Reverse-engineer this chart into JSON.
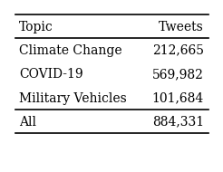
{
  "col_headers": [
    "Topic",
    "Tweets"
  ],
  "rows": [
    [
      "Climate Change",
      "212,665"
    ],
    [
      "COVID-19",
      "569,982"
    ],
    [
      "Military Vehicles",
      "101,684"
    ]
  ],
  "total_row": [
    "All",
    "884,331"
  ],
  "background_color": "#ffffff",
  "text_color": "#000000",
  "font_size": 10,
  "header_font_size": 10
}
